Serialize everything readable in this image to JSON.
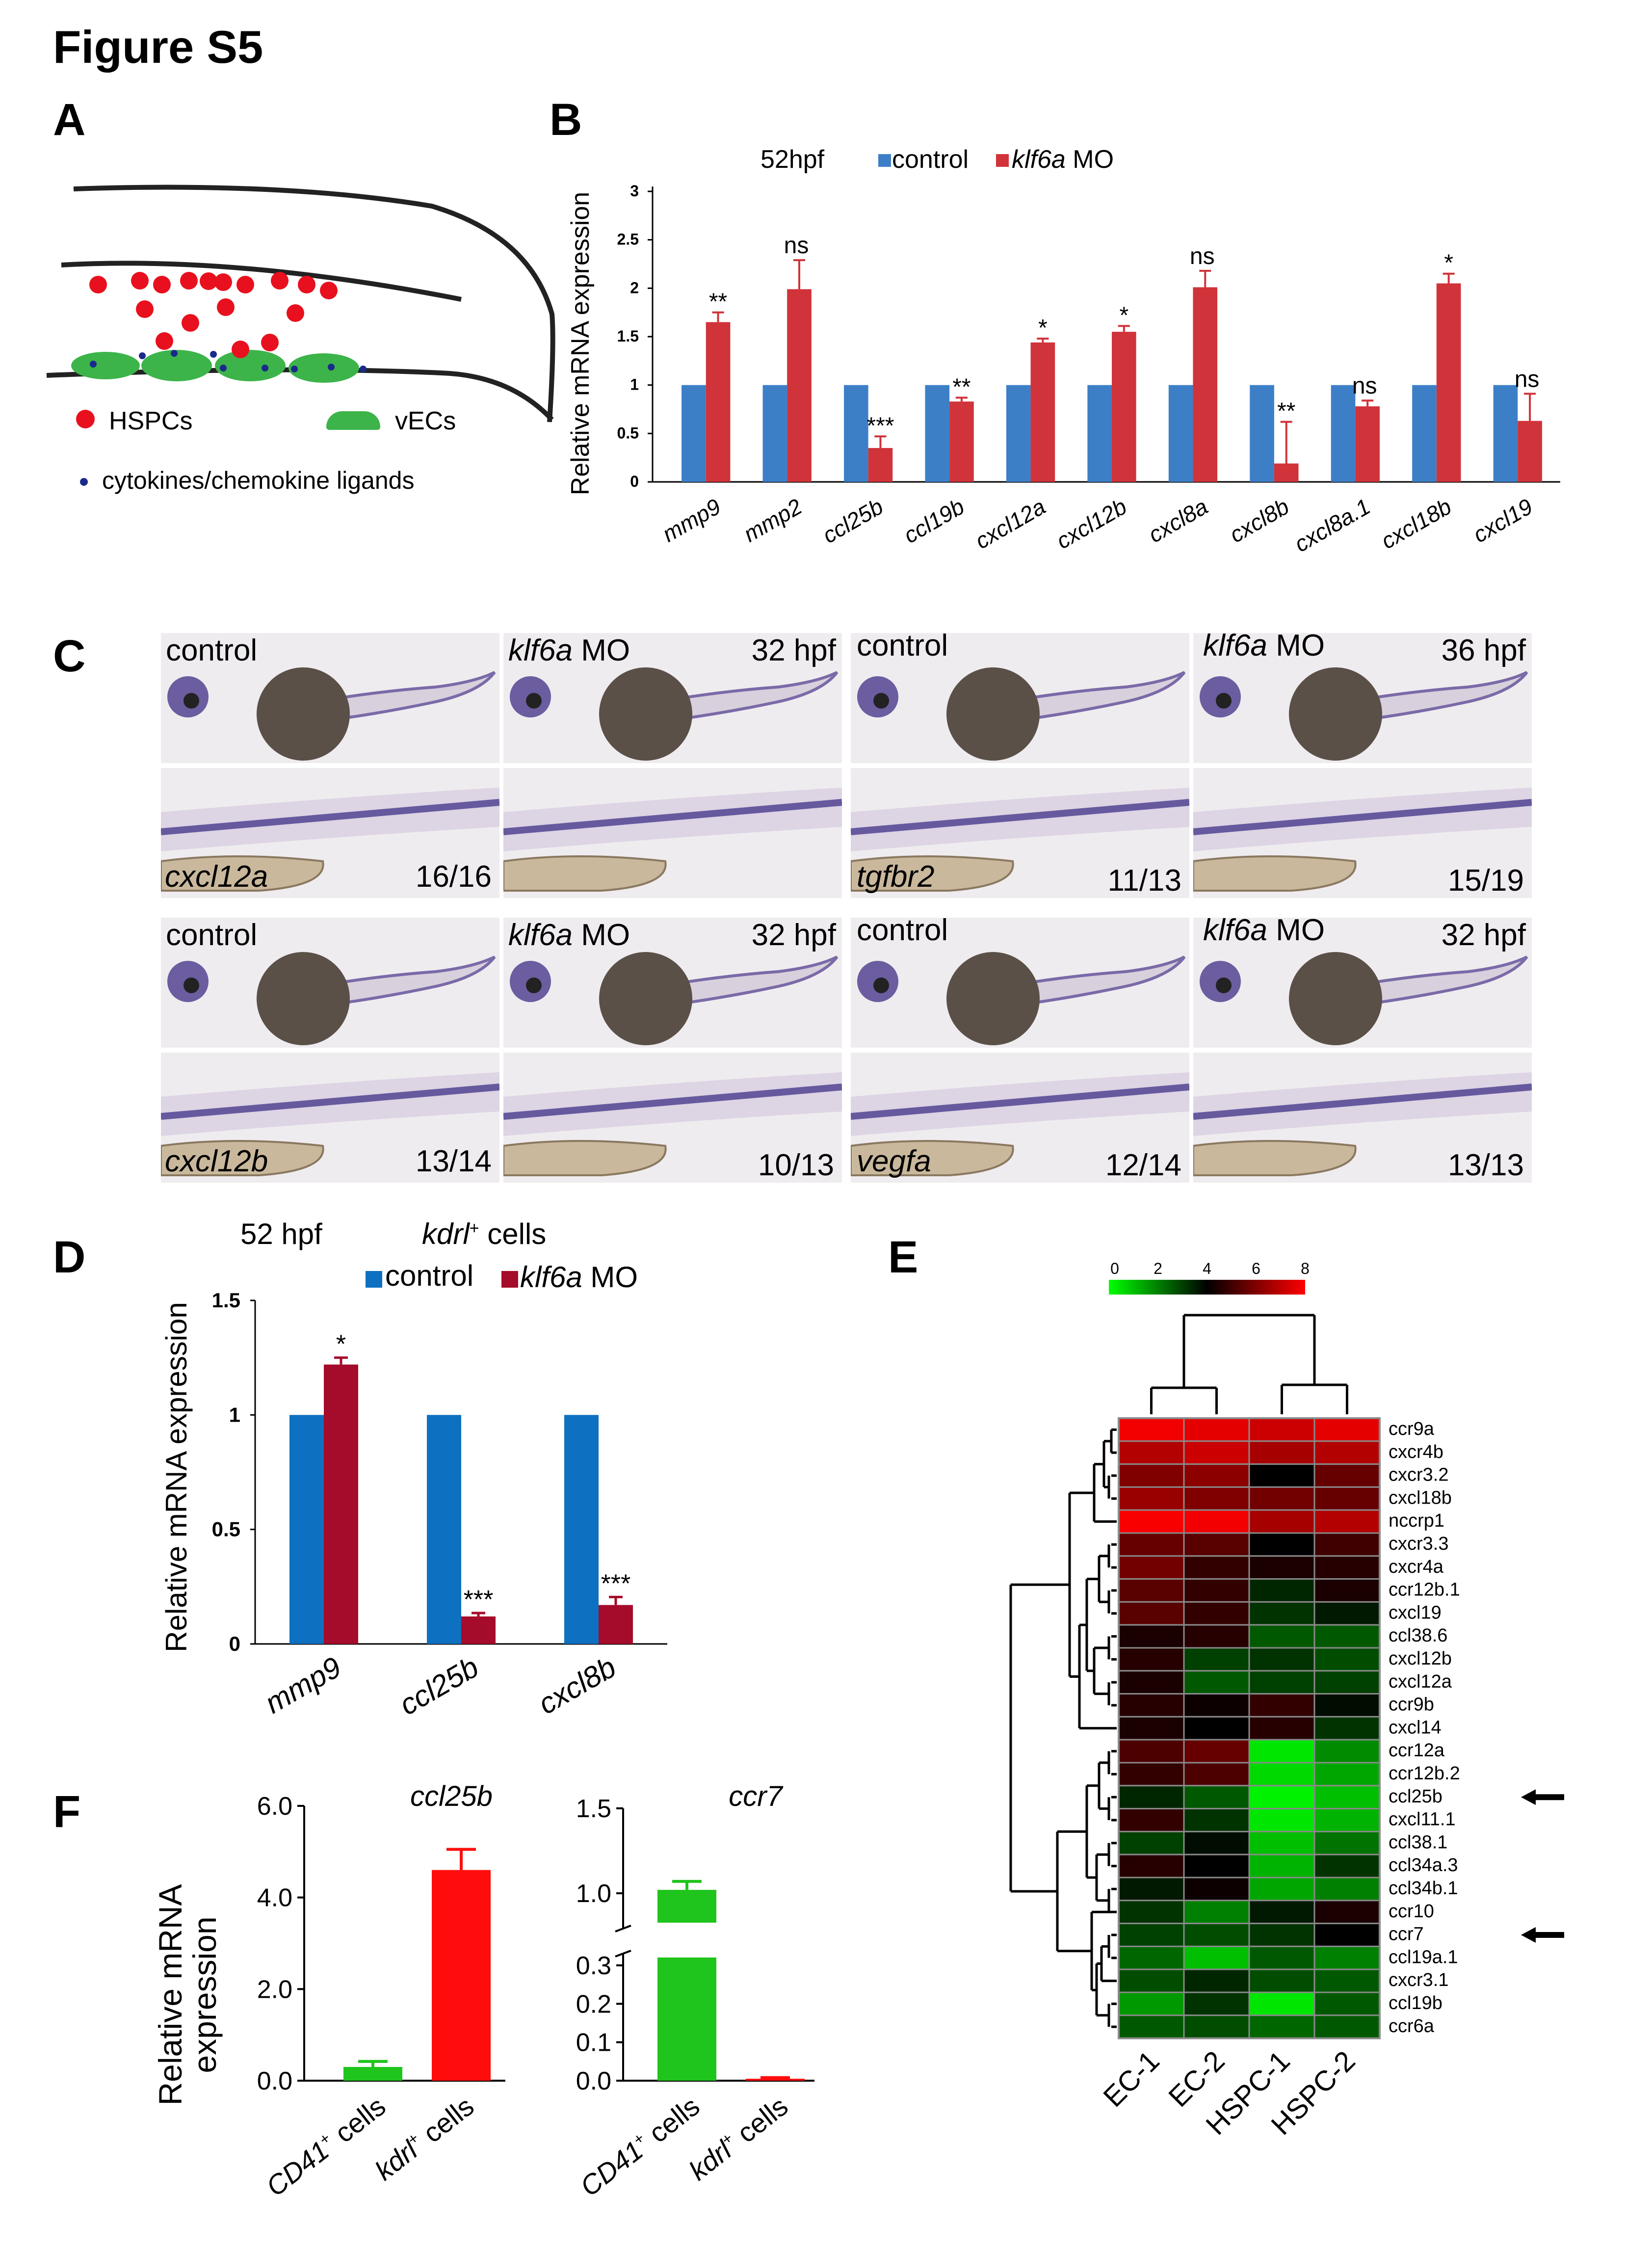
{
  "figure_title": "Figure S5",
  "panel_letters": {
    "A": "A",
    "B": "B",
    "C": "C",
    "D": "D",
    "E": "E",
    "F": "F"
  },
  "panelA": {
    "legend_hspc": "HSPCs",
    "legend_vec": "vECs",
    "legend_ligand": "cytokines/chemokine ligands",
    "colors": {
      "hspc": "#e8101f",
      "vec": "#3cb44a",
      "ligand": "#1a2a8c"
    }
  },
  "panelB": {
    "stage": "52hpf",
    "legend_control": "control",
    "legend_mo_gene": "klf6a",
    "legend_mo_suffix": " MO"
  },
  "panelC": {
    "rows": [
      {
        "top_left": "control",
        "top_mo_gene": "klf6a",
        "top_mo_suffix": " MO",
        "stage_left": "32 hpf",
        "gene_left": "cxcl12a",
        "count_left_ctrl": "16/16",
        "count_left_mo": "",
        "top_right": "control",
        "top_mo_gene_r": "klf6a",
        "stage_right": "36 hpf",
        "gene_right": "tgfbr2",
        "count_right_ctrl": "11/13",
        "count_right_mo": "15/19"
      },
      {
        "top_left": "control",
        "top_mo_gene": "klf6a",
        "top_mo_suffix": " MO",
        "stage_left": "32 hpf",
        "gene_left": "cxcl12b",
        "count_left_ctrl": "13/14",
        "count_left_mo": "10/13",
        "top_right": "control",
        "top_mo_gene_r": "klf6a",
        "stage_right": "32 hpf",
        "gene_right": "vegfa",
        "count_right_ctrl": "12/14",
        "count_right_mo": "13/13"
      }
    ],
    "colors": {
      "stain": "#4a3a8c",
      "yolk": "#5a5048",
      "bg": "#efecef"
    }
  },
  "panelD": {
    "stage": "52 hpf",
    "cells_gene": "kdrl",
    "cells_sup": "+",
    "cells_suffix": " cells",
    "legend_control": "control",
    "legend_mo_gene": "klf6a",
    "legend_mo_suffix": " MO"
  },
  "panelE": {
    "scale_ticks": [
      "0",
      "2",
      "4",
      "6",
      "8"
    ],
    "columns": [
      "EC-1",
      "EC-2",
      "HSPC-1",
      "HSPC-2"
    ],
    "rows": [
      "ccr9a",
      "cxcr4b",
      "cxcr3.2",
      "cxcl18b",
      "nccrp1",
      "cxcr3.3",
      "cxcr4a",
      "ccr12b.1",
      "cxcl19",
      "ccl38.6",
      "cxcl12b",
      "cxcl12a",
      "ccr9b",
      "cxcl14",
      "ccr12a",
      "ccr12b.2",
      "ccl25b",
      "cxcl11.1",
      "ccl38.1",
      "ccl34a.3",
      "ccl34b.1",
      "ccr10",
      "ccr7",
      "ccl19a.1",
      "cxcr3.1",
      "ccl19b",
      "ccr6a"
    ],
    "arrow_rows": [
      "ccl25b",
      "ccr7"
    ],
    "values": [
      [
        7.8,
        7.6,
        7.2,
        7.6
      ],
      [
        6.8,
        7.2,
        6.6,
        6.8
      ],
      [
        6.0,
        6.2,
        4.0,
        5.6
      ],
      [
        6.4,
        6.0,
        5.8,
        5.6
      ],
      [
        7.9,
        7.8,
        6.6,
        6.8
      ],
      [
        5.6,
        5.4,
        4.0,
        5.0
      ],
      [
        5.8,
        4.8,
        4.4,
        4.6
      ],
      [
        5.4,
        4.8,
        3.4,
        4.4
      ],
      [
        5.4,
        4.8,
        3.2,
        3.6
      ],
      [
        4.4,
        4.6,
        2.6,
        2.6
      ],
      [
        4.6,
        3.0,
        3.2,
        2.8
      ],
      [
        4.4,
        2.6,
        3.0,
        3.0
      ],
      [
        4.6,
        4.2,
        4.8,
        3.8
      ],
      [
        4.4,
        4.0,
        4.6,
        3.2
      ],
      [
        5.2,
        5.6,
        0.4,
        1.8
      ],
      [
        4.8,
        5.2,
        0.6,
        1.4
      ],
      [
        3.4,
        2.6,
        0.2,
        1.0
      ],
      [
        4.8,
        3.2,
        0.4,
        1.2
      ],
      [
        3.0,
        3.8,
        1.0,
        2.2
      ],
      [
        4.6,
        4.0,
        1.2,
        3.2
      ],
      [
        3.6,
        4.2,
        1.4,
        2.0
      ],
      [
        3.2,
        2.0,
        3.6,
        4.4
      ],
      [
        3.0,
        2.8,
        3.2,
        4.0
      ],
      [
        2.4,
        1.0,
        2.6,
        2.0
      ],
      [
        2.8,
        3.4,
        2.8,
        2.6
      ],
      [
        1.6,
        3.2,
        0.4,
        2.6
      ],
      [
        2.6,
        2.8,
        2.4,
        2.6
      ]
    ]
  },
  "panelF": {
    "ylabel_line1": "Relative mRNA",
    "ylabel_line2": "expression",
    "left_title": "ccl25b",
    "right_title": "ccr7",
    "cat1_gene": "CD41",
    "cat2_gene": "kdrl",
    "cat_sup": "+",
    "cat_suffix": " cells"
  },
  "chart_data": [
    {
      "panel": "B",
      "type": "bar",
      "ylabel": "Relative mRNA expression",
      "ylim": [
        0,
        3
      ],
      "yticks": [
        "0",
        "0.5",
        "1",
        "1.5",
        "2",
        "2.5",
        "3"
      ],
      "categories": [
        "mmp9",
        "mmp2",
        "ccl25b",
        "ccl19b",
        "cxcl12a",
        "cxcl12b",
        "cxcl8a",
        "cxcl8b",
        "cxcl8a.1",
        "cxcl18b",
        "cxcl19"
      ],
      "series": [
        {
          "name": "control",
          "color": "#3d7fc7",
          "values": [
            1,
            1,
            1,
            1,
            1,
            1,
            1,
            1,
            1,
            1,
            1
          ],
          "errors": [
            0,
            0,
            0,
            0,
            0,
            0,
            0,
            0,
            0,
            0,
            0
          ]
        },
        {
          "name": "klf6a MO",
          "color": "#d0333a",
          "values": [
            1.65,
            1.99,
            0.35,
            0.83,
            1.44,
            1.55,
            2.01,
            0.19,
            0.78,
            2.05,
            0.63
          ],
          "errors": [
            0.1,
            0.3,
            0.12,
            0.04,
            0.04,
            0.06,
            0.17,
            0.43,
            0.06,
            0.1,
            0.28
          ]
        }
      ],
      "annotations": [
        "**",
        "ns",
        "***",
        "**",
        "*",
        "*",
        "ns",
        "**",
        "ns",
        "*",
        "ns"
      ]
    },
    {
      "panel": "D",
      "type": "bar",
      "ylabel": "Relative mRNA expression",
      "ylim": [
        0,
        1.5
      ],
      "yticks": [
        "0",
        "0.5",
        "1",
        "1.5"
      ],
      "categories": [
        "mmp9",
        "ccl25b",
        "cxcl8b"
      ],
      "series": [
        {
          "name": "control",
          "color": "#0e70c0",
          "values": [
            1,
            1,
            1
          ],
          "errors": [
            0,
            0,
            0
          ]
        },
        {
          "name": "klf6a MO",
          "color": "#a50b2a",
          "values": [
            1.22,
            0.12,
            0.17
          ],
          "errors": [
            0.03,
            0.015,
            0.035
          ]
        }
      ],
      "annotations": [
        "*",
        "***",
        "***"
      ]
    },
    {
      "panel": "F-left",
      "type": "bar",
      "title": "ccl25b",
      "ylabel": "Relative mRNA expression",
      "ylim": [
        0,
        6
      ],
      "yticks": [
        "0.0",
        "2.0",
        "4.0",
        "6.0"
      ],
      "categories": [
        "CD41+ cells",
        "kdrl+ cells"
      ],
      "values": [
        0.3,
        4.6
      ],
      "errors": [
        0.12,
        0.45
      ],
      "colors": [
        "#1fc41c",
        "#ff0d0d"
      ]
    },
    {
      "panel": "F-right",
      "type": "bar",
      "title": "ccr7",
      "ylabel": "Relative mRNA expression",
      "ylim": [
        0,
        1.5
      ],
      "axis_break": [
        0.3,
        0.85
      ],
      "yticks": [
        "0.0",
        "0.1",
        "0.2",
        "0.3",
        "1.0",
        "1.5"
      ],
      "categories": [
        "CD41+ cells",
        "kdrl+ cells"
      ],
      "values": [
        1.02,
        0.005
      ],
      "errors": [
        0.05,
        0.003
      ],
      "colors": [
        "#1fc41c",
        "#ff0d0d"
      ]
    }
  ]
}
